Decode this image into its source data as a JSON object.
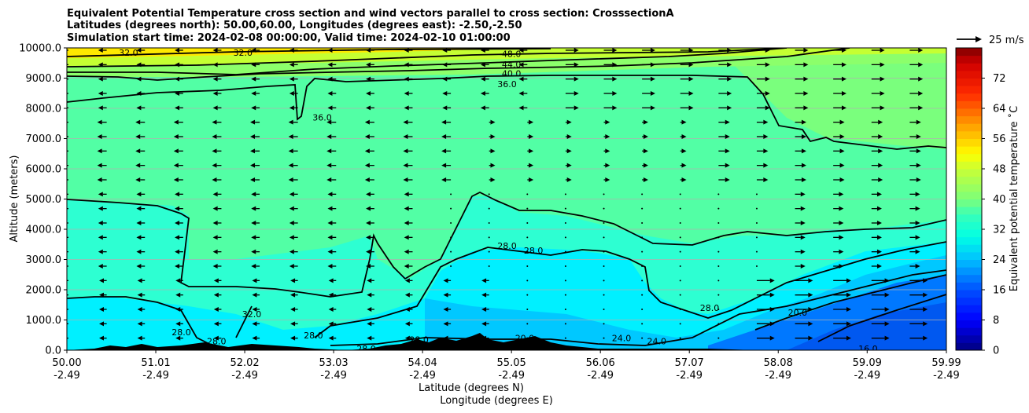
{
  "chart_data": {
    "type": "contour",
    "title_lines": [
      "Equivalent Potential Temperature cross section and wind vectors parallel to cross section: CrosssectionA",
      "Latitudes (degrees north): 50.00,60.00, Longitudes (degrees east): -2.50,-2.50",
      "Simulation start time: 2024-02-08 00:00:00, Valid time: 2024-02-10 01:00:00"
    ],
    "ylabel": "Altitude (meters)",
    "xlabel_lat": "Latitude (degrees N)",
    "xlabel_lon": "Longitude (degrees E)",
    "ylim": [
      0,
      10000
    ],
    "xlim": [
      50.0,
      59.99
    ],
    "y_ticks": [
      "0.0",
      "1000.0",
      "2000.0",
      "3000.0",
      "4000.0",
      "5000.0",
      "6000.0",
      "7000.0",
      "8000.0",
      "9000.0",
      "10000.0"
    ],
    "x_ticks_lat": [
      "50.00",
      "51.01",
      "52.02",
      "53.03",
      "54.04",
      "55.05",
      "56.06",
      "57.07",
      "58.08",
      "59.09",
      "59.99"
    ],
    "x_ticks_lon": [
      "-2.49",
      "-2.49",
      "-2.49",
      "-2.49",
      "-2.49",
      "-2.49",
      "-2.49",
      "-2.49",
      "-2.49",
      "-2.49",
      "-2.49"
    ],
    "colorbar": {
      "label": "Equivalent potential temperature ˚C",
      "min": 0,
      "max": 80,
      "ticks": [
        "0",
        "8",
        "16",
        "24",
        "32",
        "40",
        "48",
        "56",
        "64",
        "72"
      ]
    },
    "quiver_key": "25 m/s",
    "contour_labels": [
      {
        "text": "48.0",
        "x": 55.05,
        "y": 9800
      },
      {
        "text": "44.0",
        "x": 55.05,
        "y": 9450
      },
      {
        "text": "40.0",
        "x": 55.05,
        "y": 9150
      },
      {
        "text": "36.0",
        "x": 55.0,
        "y": 8800
      },
      {
        "text": "32.0",
        "x": 50.7,
        "y": 9850
      },
      {
        "text": "32.0",
        "x": 52.0,
        "y": 9850
      },
      {
        "text": "36.0",
        "x": 52.9,
        "y": 7700
      },
      {
        "text": "32.0",
        "x": 52.1,
        "y": 1200
      },
      {
        "text": "28.0",
        "x": 55.0,
        "y": 3450
      },
      {
        "text": "28.0",
        "x": 55.3,
        "y": 3300
      },
      {
        "text": "28.0",
        "x": 51.3,
        "y": 600
      },
      {
        "text": "28.0",
        "x": 51.7,
        "y": 300
      },
      {
        "text": "28.0",
        "x": 52.8,
        "y": 500
      },
      {
        "text": "28.0",
        "x": 53.4,
        "y": 50
      },
      {
        "text": "28.0",
        "x": 54.0,
        "y": 350
      },
      {
        "text": "28.0",
        "x": 57.3,
        "y": 1400
      },
      {
        "text": "20.0",
        "x": 58.3,
        "y": 1250
      },
      {
        "text": "24.0",
        "x": 56.7,
        "y": 300
      },
      {
        "text": "24.0",
        "x": 56.3,
        "y": 400
      },
      {
        "text": "20.0",
        "x": 55.2,
        "y": 400
      },
      {
        "text": "16.0",
        "x": 59.1,
        "y": 50
      }
    ]
  }
}
